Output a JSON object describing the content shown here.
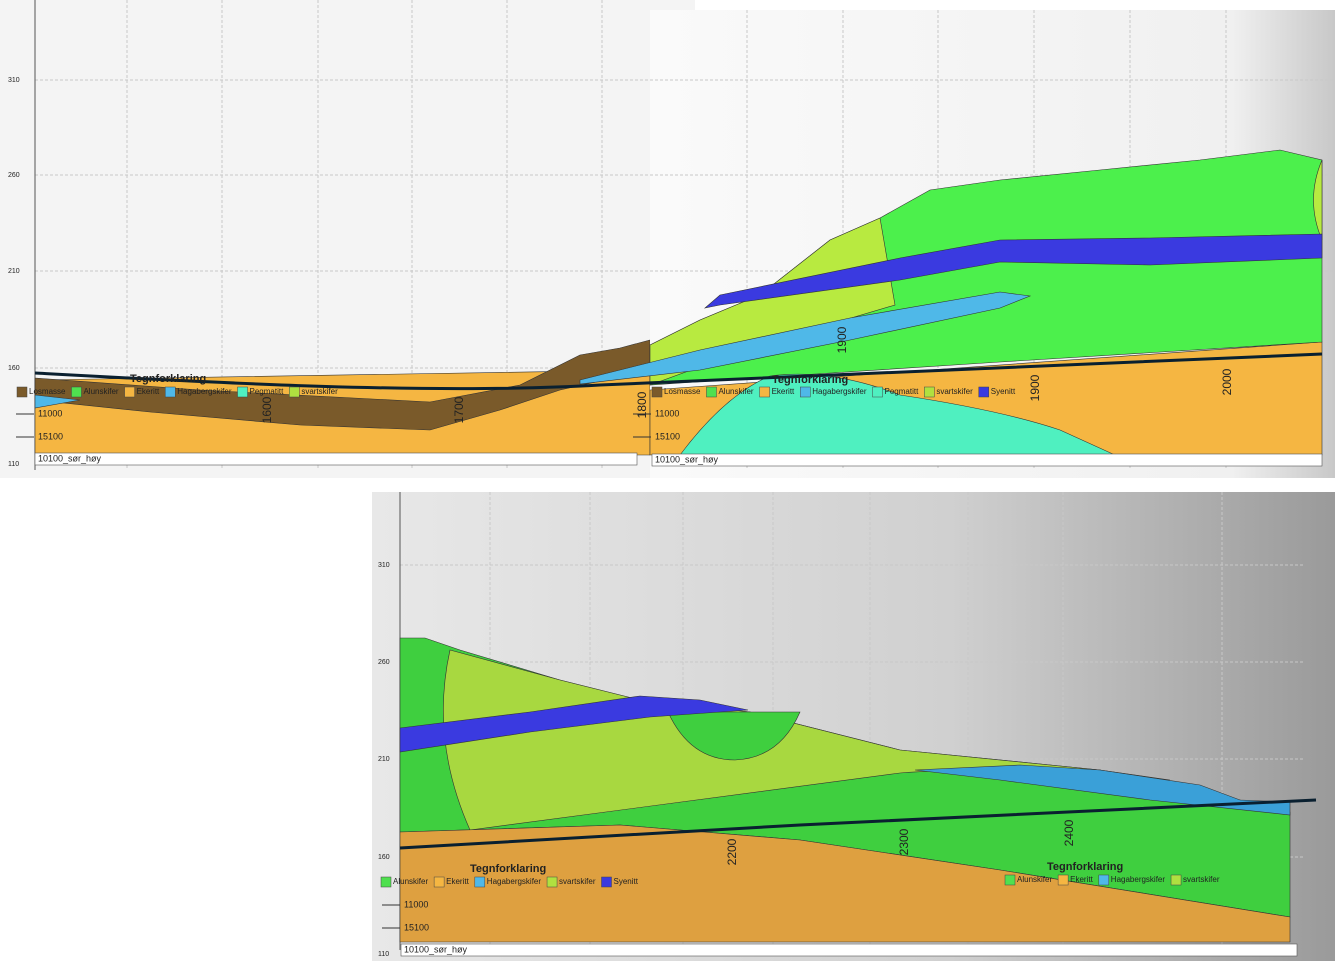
{
  "top_left": {
    "y_axis": [
      "310",
      "260",
      "210",
      "160",
      "110"
    ],
    "distance_labels": [
      "1600",
      "1700",
      "1800"
    ],
    "legend": {
      "title": "Tegnforklaring",
      "items": [
        {
          "name": "Losmasse",
          "color": "#7a5a2a"
        },
        {
          "name": "Alunskifer",
          "color": "#4fe04f"
        },
        {
          "name": "Ekeritt",
          "color": "#f5b642"
        },
        {
          "name": "Hagabergskifer",
          "color": "#4fb8e8"
        },
        {
          "name": "Pegmatitt",
          "color": "#4ff0c0"
        },
        {
          "name": "svartskifer",
          "color": "#b0e040"
        }
      ]
    },
    "lines": [
      "11000",
      "15100"
    ],
    "profile_name": "10100_sør_høy"
  },
  "top_right": {
    "distance_labels": [
      "1900",
      "1900",
      "2000"
    ],
    "legend": {
      "title": "Tegnforklaring",
      "items": [
        {
          "name": "Losmasse",
          "color": "#7a5a2a"
        },
        {
          "name": "Alunskifer",
          "color": "#4fe04f"
        },
        {
          "name": "Ekeritt",
          "color": "#f5b642"
        },
        {
          "name": "Hagabergskifer",
          "color": "#4fb8e8"
        },
        {
          "name": "Pegmatitt",
          "color": "#4ff0c0"
        },
        {
          "name": "svartskifer",
          "color": "#b0e040"
        },
        {
          "name": "Syenitt",
          "color": "#3a3ae0"
        }
      ]
    },
    "lines": [
      "11000",
      "15100"
    ],
    "profile_name": "10100_sør_høy"
  },
  "bottom": {
    "y_axis": [
      "310",
      "260",
      "210",
      "160",
      "110"
    ],
    "distance_labels": [
      "2200",
      "2300",
      "2400"
    ],
    "legend": {
      "title": "Tegnforklaring",
      "items": [
        {
          "name": "Alunskifer",
          "color": "#4fe04f"
        },
        {
          "name": "Ekeritt",
          "color": "#f5b642"
        },
        {
          "name": "Hagabergskifer",
          "color": "#4fb8e8"
        },
        {
          "name": "svartskifer",
          "color": "#b0e040"
        },
        {
          "name": "Syenitt",
          "color": "#3a3ae0"
        }
      ]
    },
    "legend_2": {
      "title": "Tegnforklaring",
      "items": [
        {
          "name": "Alunskifer",
          "color": "#4fe04f"
        },
        {
          "name": "Ekeritt",
          "color": "#f5b642"
        },
        {
          "name": "Hagabergskifer",
          "color": "#4fb8e8"
        },
        {
          "name": "svartskifer",
          "color": "#b0e040"
        }
      ]
    },
    "lines": [
      "11000",
      "15100"
    ],
    "profile_name": "10100_sør_høy"
  }
}
